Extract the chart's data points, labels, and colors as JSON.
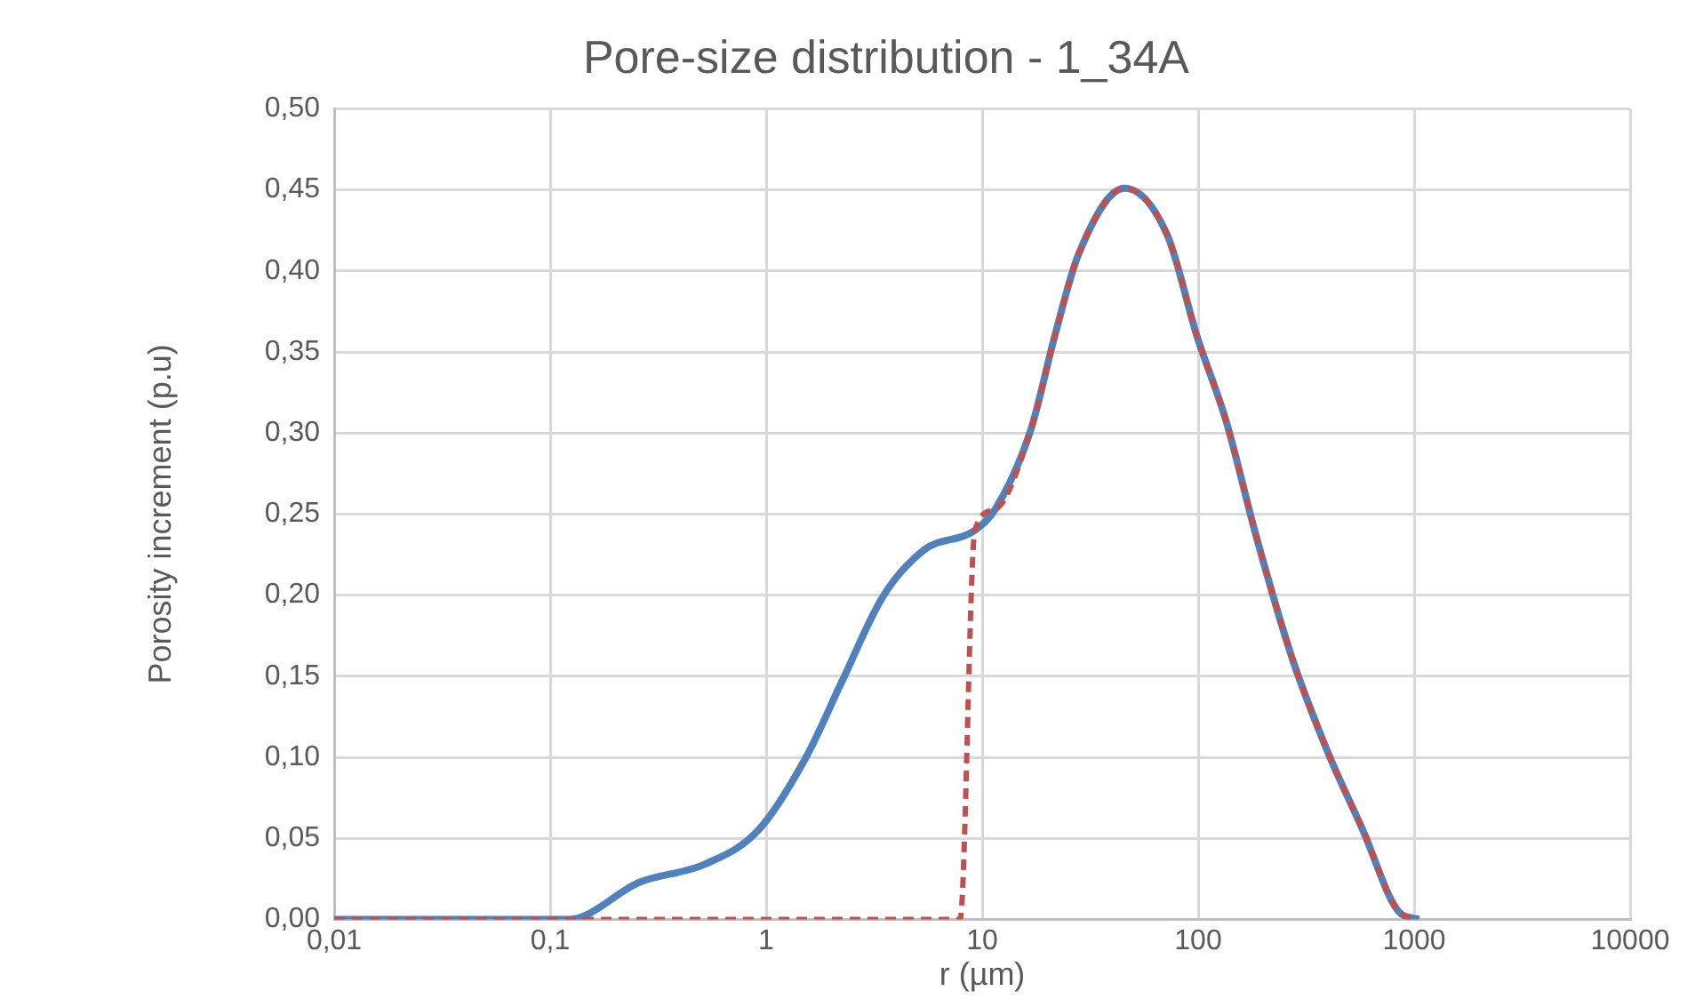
{
  "chart_data": {
    "type": "line",
    "title": "Pore-size distribution - 1_34A",
    "xlabel": "r (µm)",
    "ylabel": "Porosity increment (p.u)",
    "log": "x",
    "xlim": [
      0.01,
      10000
    ],
    "xticks": [
      {
        "value": 0.01,
        "label": "0,01"
      },
      {
        "value": 0.1,
        "label": "0,1"
      },
      1,
      10,
      100,
      1000,
      10000
    ],
    "ylim": [
      0,
      0.5
    ],
    "yticks": [
      {
        "value": 0,
        "label": "0,00"
      },
      {
        "value": 0.05,
        "label": "0,05"
      },
      {
        "value": 0.1,
        "label": "0,10"
      },
      {
        "value": 0.15,
        "label": "0,15"
      },
      {
        "value": 0.2,
        "label": "0,20"
      },
      {
        "value": 0.25,
        "label": "0,25"
      },
      {
        "value": 0.3,
        "label": "0,30"
      },
      {
        "value": 0.35,
        "label": "0,35"
      },
      {
        "value": 0.4,
        "label": "0,40"
      },
      {
        "value": 0.45,
        "label": "0,45"
      },
      {
        "value": 0.5,
        "label": "0,50"
      }
    ],
    "grid": true,
    "legend": false,
    "marker": "none",
    "series": [
      {
        "color": "#4f81bd",
        "line_style": "solid",
        "x": [
          0.01,
          0.122,
          0.26,
          0.52,
          0.92,
          1.53,
          2.23,
          3.47,
          5.4,
          9.25,
          11.5,
          16.8,
          21.7,
          27.9,
          45.7,
          72,
          98.6,
          135,
          186,
          271,
          396,
          579,
          846,
          1050
        ],
        "values": [
          0,
          0,
          0.023,
          0.034,
          0.055,
          0.1,
          0.146,
          0.199,
          0.228,
          0.24,
          0.253,
          0.302,
          0.36,
          0.41,
          0.451,
          0.422,
          0.36,
          0.307,
          0.236,
          0.162,
          0.104,
          0.055,
          0.005,
          0
        ]
      },
      {
        "color": "#c0504d",
        "line_style": "dashed",
        "x": [
          0.01,
          7.9,
          9.25,
          11.5,
          16.8,
          21.7,
          27.9,
          45.7,
          72,
          98.6,
          135,
          186,
          271,
          396,
          579,
          846,
          1050
        ],
        "values": [
          0,
          0,
          0.24,
          0.253,
          0.302,
          0.36,
          0.41,
          0.451,
          0.422,
          0.36,
          0.307,
          0.236,
          0.162,
          0.104,
          0.055,
          0.005,
          0
        ]
      }
    ]
  }
}
